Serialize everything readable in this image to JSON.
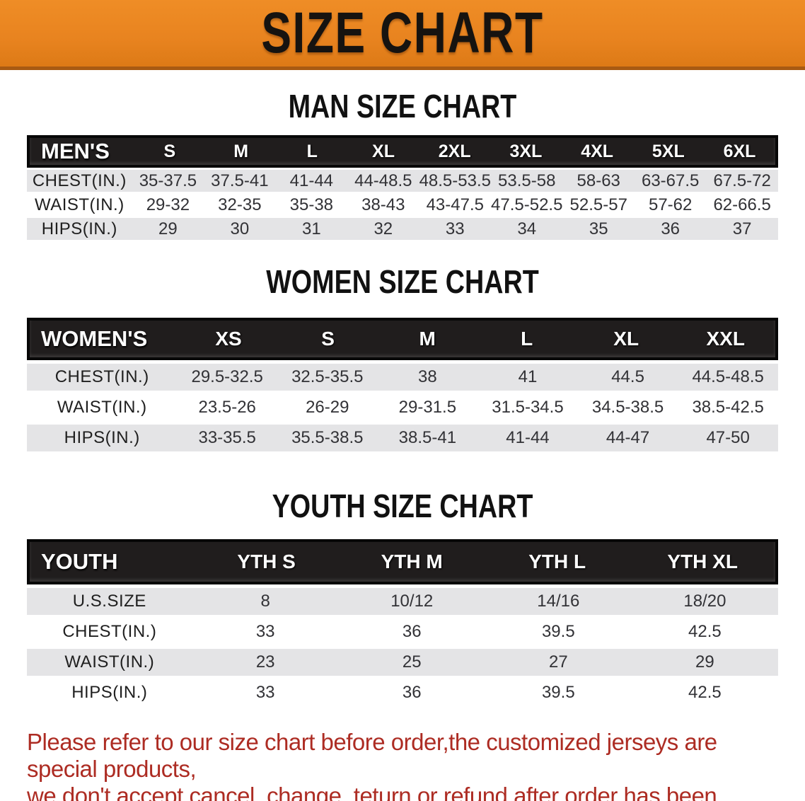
{
  "banner": {
    "title": "SIZE CHART"
  },
  "colors": {
    "banner_orange": "#e8831f",
    "banner_edge": "#a85a12",
    "header_black": "#201d1d",
    "row_gray": "#e4e4e6",
    "disclaimer_red": "#ad2c23"
  },
  "sections": {
    "men": {
      "heading": "MAN SIZE CHART",
      "corner": "MEN'S",
      "columns": [
        "S",
        "M",
        "L",
        "XL",
        "2XL",
        "3XL",
        "4XL",
        "5XL",
        "6XL"
      ],
      "rows": [
        {
          "label": "CHEST(IN.)",
          "values": [
            "35-37.5",
            "37.5-41",
            "41-44",
            "44-48.5",
            "48.5-53.5",
            "53.5-58",
            "58-63",
            "63-67.5",
            "67.5-72"
          ]
        },
        {
          "label": "WAIST(IN.)",
          "values": [
            "29-32",
            "32-35",
            "35-38",
            "38-43",
            "43-47.5",
            "47.5-52.5",
            "52.5-57",
            "57-62",
            "62-66.5"
          ]
        },
        {
          "label": "HIPS(IN.)",
          "values": [
            "29",
            "30",
            "31",
            "32",
            "33",
            "34",
            "35",
            "36",
            "37"
          ]
        }
      ]
    },
    "women": {
      "heading": "WOMEN SIZE CHART",
      "corner": "WOMEN'S",
      "columns": [
        "XS",
        "S",
        "M",
        "L",
        "XL",
        "XXL"
      ],
      "rows": [
        {
          "label": "CHEST(IN.)",
          "values": [
            "29.5-32.5",
            "32.5-35.5",
            "38",
            "41",
            "44.5",
            "44.5-48.5"
          ]
        },
        {
          "label": "WAIST(IN.)",
          "values": [
            "23.5-26",
            "26-29",
            "29-31.5",
            "31.5-34.5",
            "34.5-38.5",
            "38.5-42.5"
          ]
        },
        {
          "label": "HIPS(IN.)",
          "values": [
            "33-35.5",
            "35.5-38.5",
            "38.5-41",
            "41-44",
            "44-47",
            "47-50"
          ]
        }
      ]
    },
    "youth": {
      "heading": "YOUTH SIZE CHART",
      "corner": "YOUTH",
      "columns": [
        "YTH S",
        "YTH M",
        "YTH L",
        "YTH XL"
      ],
      "rows": [
        {
          "label": "U.S.SIZE",
          "values": [
            "8",
            "10/12",
            "14/16",
            "18/20"
          ]
        },
        {
          "label": "CHEST(IN.)",
          "values": [
            "33",
            "36",
            "39.5",
            "42.5"
          ]
        },
        {
          "label": "WAIST(IN.)",
          "values": [
            "23",
            "25",
            "27",
            "29"
          ]
        },
        {
          "label": "HIPS(IN.)",
          "values": [
            "33",
            "36",
            "39.5",
            "42.5"
          ]
        }
      ]
    }
  },
  "disclaimer": {
    "line1": "Please refer to our size chart before order,the customized jerseys are special products,",
    "line2": "we don't accept cancel, change, teturn or refund after order has been placed!"
  }
}
